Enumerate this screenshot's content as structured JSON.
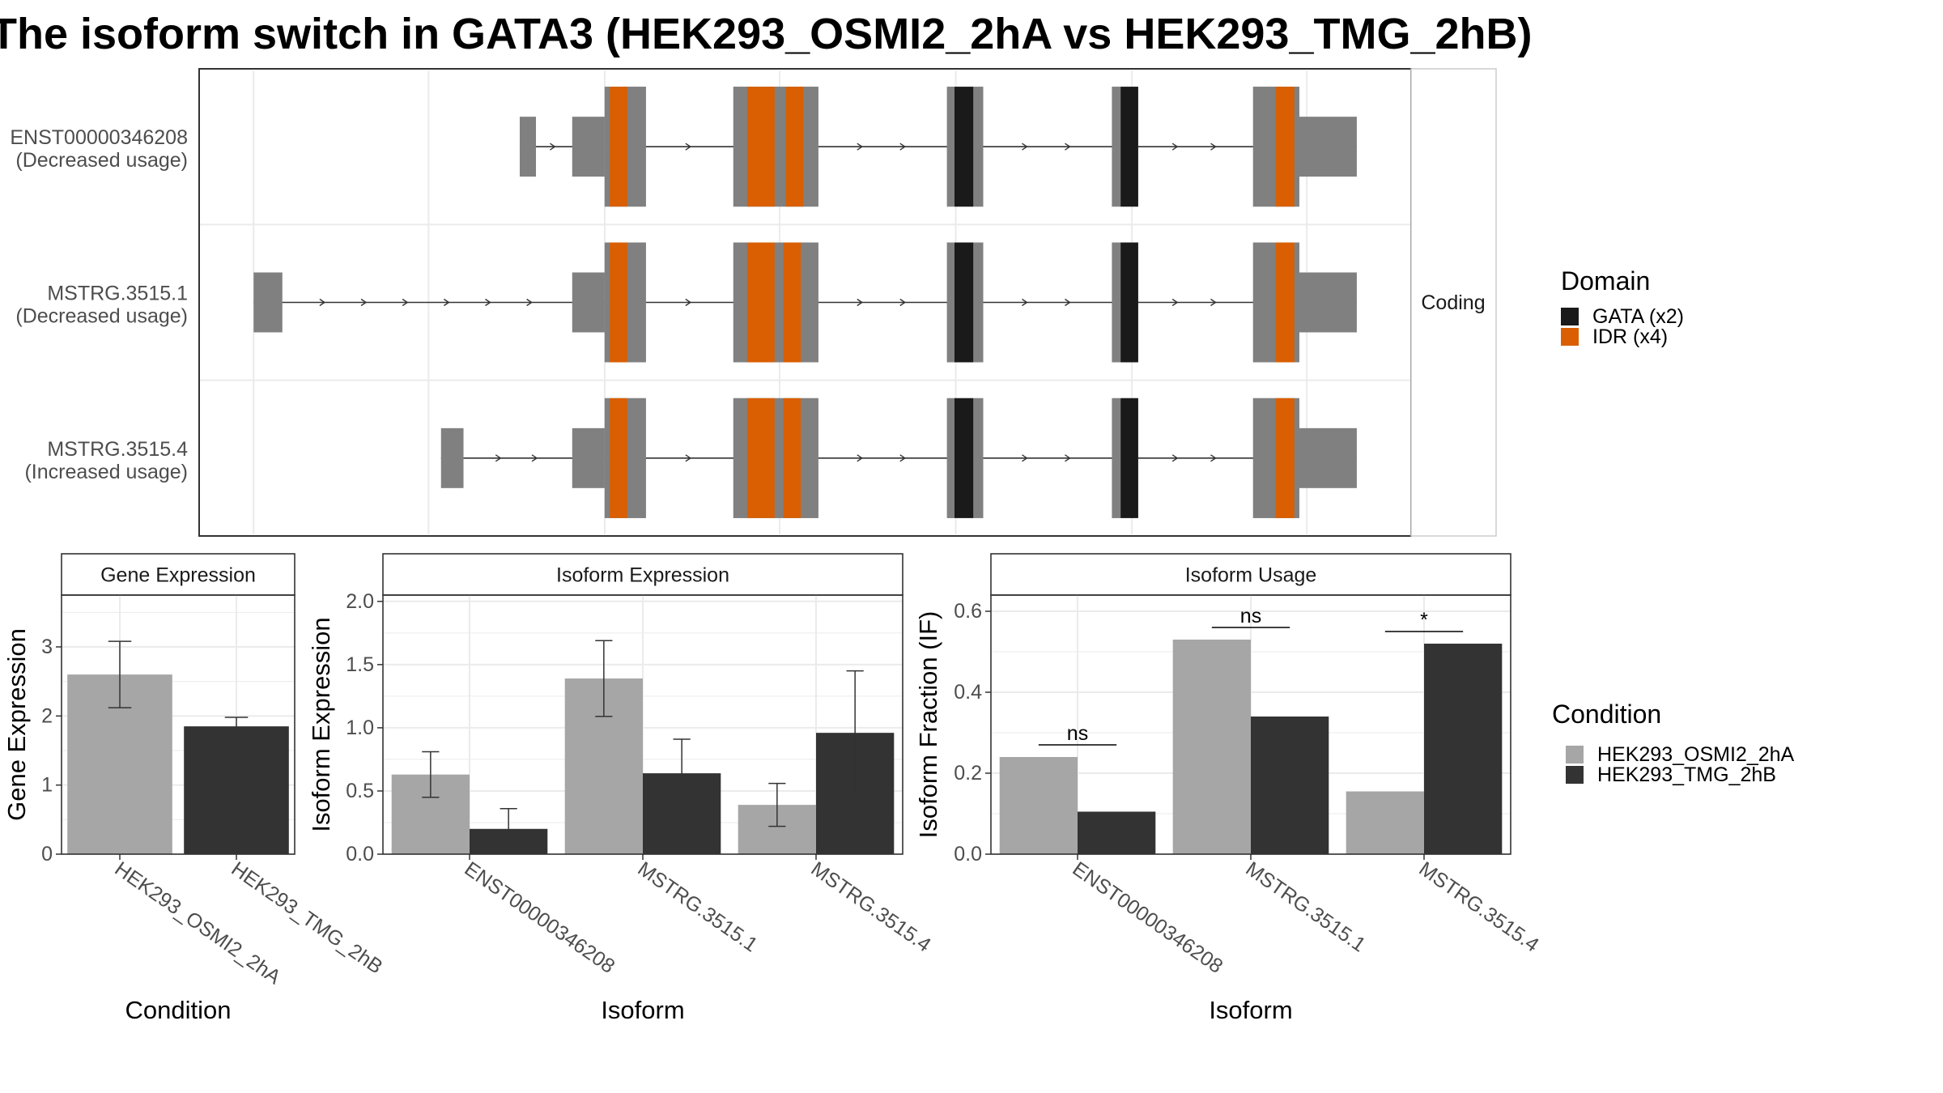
{
  "title": "The isoform switch in GATA3 (HEK293_OSMI2_2hA vs HEK293_TMG_2hB)",
  "colors": {
    "exon": "#808080",
    "gata": "#1a1a1a",
    "idr": "#d95f02",
    "cond_a": "#a6a6a6",
    "cond_b": "#333333",
    "grid": "#ebebeb",
    "frame": "#333333"
  },
  "chart_data": [
    {
      "type": "gene-structure",
      "facet_label": "Coding",
      "transcripts": [
        {
          "name": "ENST00000346208",
          "usage": "(Decreased usage)",
          "exons": [
            [
              416,
              429
            ],
            [
              458,
              517
            ],
            [
              587,
              655
            ],
            [
              758,
              787
            ],
            [
              890,
              911
            ],
            [
              1003,
              1086
            ]
          ],
          "utr": [
            [
              416,
              429
            ],
            [
              458,
              484
            ],
            [
              1040,
              1086
            ]
          ],
          "domains": [
            {
              "type": "IDR",
              "start": 488,
              "end": 502
            },
            {
              "type": "IDR",
              "start": 598,
              "end": 620
            },
            {
              "type": "IDR",
              "start": 629,
              "end": 643
            },
            {
              "type": "GATA",
              "start": 764,
              "end": 779
            },
            {
              "type": "GATA",
              "start": 897,
              "end": 911
            },
            {
              "type": "IDR",
              "start": 1021,
              "end": 1036
            }
          ]
        },
        {
          "name": "MSTRG.3515.1",
          "usage": "(Decreased usage)",
          "exons": [
            [
              203,
              226
            ],
            [
              458,
              517
            ],
            [
              587,
              655
            ],
            [
              758,
              787
            ],
            [
              890,
              911
            ],
            [
              1003,
              1086
            ]
          ],
          "utr": [
            [
              203,
              226
            ],
            [
              458,
              484
            ],
            [
              1040,
              1086
            ]
          ],
          "domains": [
            {
              "type": "IDR",
              "start": 488,
              "end": 502
            },
            {
              "type": "IDR",
              "start": 598,
              "end": 620
            },
            {
              "type": "IDR",
              "start": 627,
              "end": 641
            },
            {
              "type": "GATA",
              "start": 764,
              "end": 779
            },
            {
              "type": "GATA",
              "start": 897,
              "end": 911
            },
            {
              "type": "IDR",
              "start": 1021,
              "end": 1036
            }
          ]
        },
        {
          "name": "MSTRG.3515.4",
          "usage": "(Increased usage)",
          "exons": [
            [
              353,
              371
            ],
            [
              458,
              517
            ],
            [
              587,
              655
            ],
            [
              758,
              787
            ],
            [
              890,
              911
            ],
            [
              1003,
              1086
            ]
          ],
          "utr": [
            [
              353,
              371
            ],
            [
              458,
              484
            ],
            [
              1040,
              1086
            ]
          ],
          "domains": [
            {
              "type": "IDR",
              "start": 488,
              "end": 502
            },
            {
              "type": "IDR",
              "start": 598,
              "end": 620
            },
            {
              "type": "IDR",
              "start": 627,
              "end": 641
            },
            {
              "type": "GATA",
              "start": 764,
              "end": 779
            },
            {
              "type": "GATA",
              "start": 897,
              "end": 911
            },
            {
              "type": "IDR",
              "start": 1021,
              "end": 1036
            }
          ]
        }
      ],
      "domain_legend": {
        "title": "Domain",
        "items": [
          {
            "label": "GATA (x2)",
            "color": "#1a1a1a"
          },
          {
            "label": "IDR (x4)",
            "color": "#d95f02"
          }
        ]
      }
    },
    {
      "type": "bar",
      "facet_label": "Gene Expression",
      "xlabel": "Condition",
      "ylabel": "Gene Expression",
      "ylim": [
        0,
        3.75
      ],
      "yticks": [
        0,
        1,
        2,
        3
      ],
      "categories": [
        "HEK293_OSMI2_2hA",
        "HEK293_TMG_2hB"
      ],
      "values": [
        2.6,
        1.85
      ],
      "errors": [
        [
          2.12,
          3.08
        ],
        [
          1.72,
          1.98
        ]
      ]
    },
    {
      "type": "bar",
      "facet_label": "Isoform Expression",
      "xlabel": "Isoform",
      "ylabel": "Isoform Expression",
      "ylim": [
        0,
        2.05
      ],
      "yticks": [
        0.0,
        0.5,
        1.0,
        1.5,
        2.0
      ],
      "categories": [
        "ENST00000346208",
        "MSTRG.3515.1",
        "MSTRG.3515.4"
      ],
      "series": [
        {
          "name": "HEK293_OSMI2_2hA",
          "values": [
            0.63,
            1.39,
            0.39
          ],
          "errors": [
            [
              0.45,
              0.81
            ],
            [
              1.09,
              1.69
            ],
            [
              0.22,
              0.56
            ]
          ]
        },
        {
          "name": "HEK293_TMG_2hB",
          "values": [
            0.2,
            0.64,
            0.96
          ],
          "errors": [
            [
              0.04,
              0.36
            ],
            [
              0.37,
              0.91
            ],
            [
              0.48,
              1.45
            ]
          ]
        }
      ]
    },
    {
      "type": "bar",
      "facet_label": "Isoform Usage",
      "xlabel": "Isoform",
      "ylabel": "Isoform Fraction (IF)",
      "ylim": [
        0,
        0.64
      ],
      "yticks": [
        0.0,
        0.2,
        0.4,
        0.6
      ],
      "categories": [
        "ENST00000346208",
        "MSTRG.3515.1",
        "MSTRG.3515.4"
      ],
      "series": [
        {
          "name": "HEK293_OSMI2_2hA",
          "values": [
            0.24,
            0.53,
            0.155
          ]
        },
        {
          "name": "HEK293_TMG_2hB",
          "values": [
            0.105,
            0.34,
            0.52
          ]
        }
      ],
      "significance": [
        {
          "label": "ns",
          "y": 0.27
        },
        {
          "label": "ns",
          "y": 0.56
        },
        {
          "label": "*",
          "y": 0.55
        }
      ]
    }
  ],
  "condition_legend": {
    "title": "Condition",
    "items": [
      {
        "label": "HEK293_OSMI2_2hA",
        "color": "#a6a6a6"
      },
      {
        "label": "HEK293_TMG_2hB",
        "color": "#333333"
      }
    ]
  }
}
